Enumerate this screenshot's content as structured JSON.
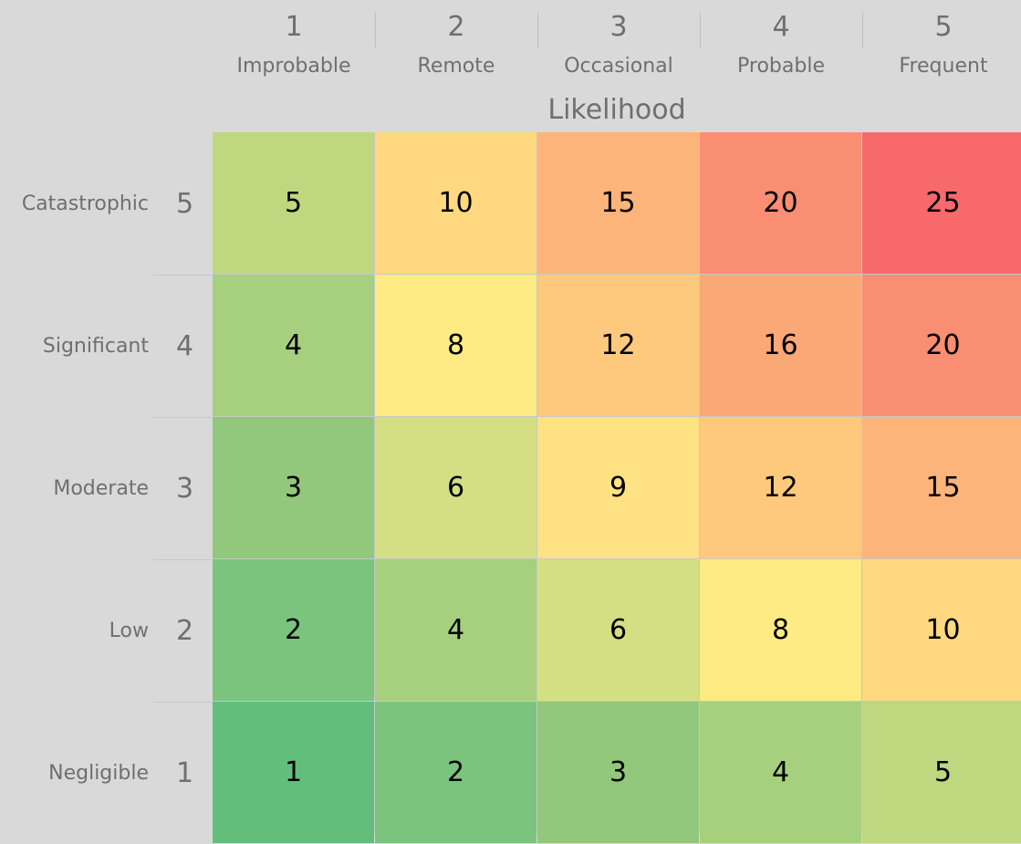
{
  "chart_data": {
    "type": "heatmap",
    "x_title": "Likelihood",
    "x_levels": [
      {
        "num": "1",
        "label": "Improbable"
      },
      {
        "num": "2",
        "label": "Remote"
      },
      {
        "num": "3",
        "label": "Occasional"
      },
      {
        "num": "4",
        "label": "Probable"
      },
      {
        "num": "5",
        "label": "Frequent"
      }
    ],
    "y_levels": [
      {
        "num": "5",
        "label": "Catastrophic"
      },
      {
        "num": "4",
        "label": "Significant"
      },
      {
        "num": "3",
        "label": "Moderate"
      },
      {
        "num": "2",
        "label": "Low"
      },
      {
        "num": "1",
        "label": "Negligible"
      }
    ],
    "values": [
      [
        5,
        10,
        15,
        20,
        25
      ],
      [
        4,
        8,
        12,
        16,
        20
      ],
      [
        3,
        6,
        9,
        12,
        15
      ],
      [
        2,
        4,
        6,
        8,
        10
      ],
      [
        1,
        2,
        3,
        4,
        5
      ]
    ],
    "colors": {
      "1": "#63be7b",
      "2": "#7bc47d",
      "3": "#91c87b",
      "4": "#a6d07d",
      "5": "#bfd880",
      "6": "#d4df84",
      "8": "#ffeb84",
      "9": "#fee283",
      "10": "#ffd880",
      "12": "#fec97d",
      "15": "#fdb47a",
      "16": "#fba877",
      "20": "#f98e72",
      "25": "#f8696b"
    }
  }
}
